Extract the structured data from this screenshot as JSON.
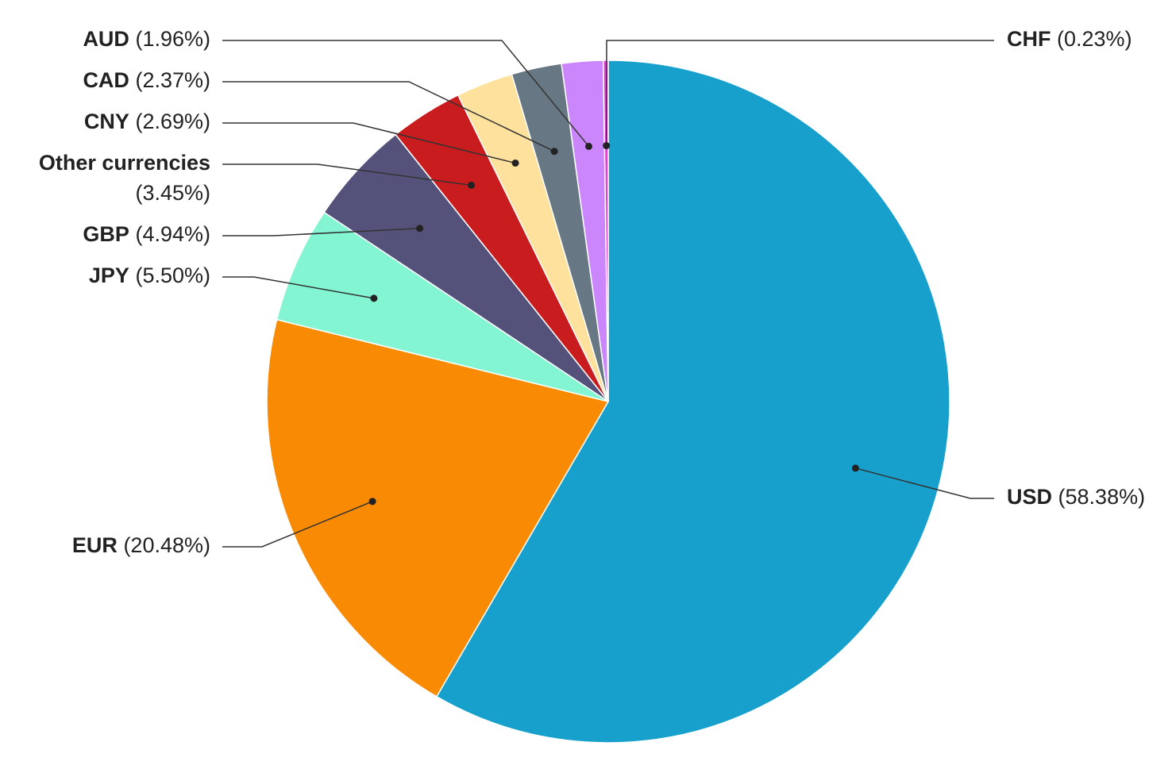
{
  "chart_data": {
    "type": "pie",
    "categories": [
      "USD",
      "EUR",
      "JPY",
      "GBP",
      "Other currencies",
      "CNY",
      "CAD",
      "AUD",
      "CHF"
    ],
    "values": [
      58.38,
      20.48,
      5.5,
      4.94,
      3.45,
      2.69,
      2.37,
      1.96,
      0.23
    ],
    "value_labels": [
      "(58.38%)",
      "(20.48%)",
      "(5.50%)",
      "(4.94%)",
      "(3.45%)",
      "(2.69%)",
      "(2.37%)",
      "(1.96%)",
      "(0.23%)"
    ],
    "colors": [
      "#17a0cc",
      "#f98a04",
      "#84f5d3",
      "#54527a",
      "#c81c1f",
      "#fde19c",
      "#677884",
      "#cc86fb",
      "#e042d4"
    ]
  }
}
